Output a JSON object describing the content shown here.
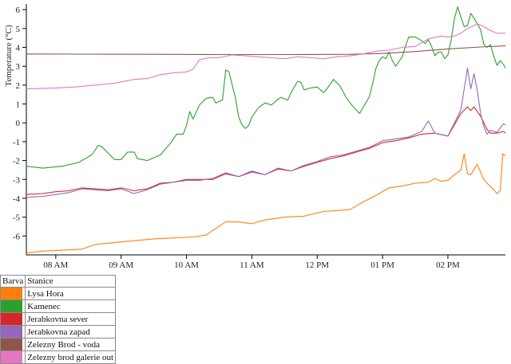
{
  "chart_data": {
    "type": "line",
    "ylabel": "Temperature (°C)",
    "ylim": [
      -7,
      6.3
    ],
    "yticks": [
      -6,
      -5,
      -4,
      -3,
      -2,
      -1,
      0,
      1,
      2,
      3,
      4,
      5,
      6
    ],
    "xlim": [
      7.55,
      14.88
    ],
    "xticks": [
      {
        "value": 8,
        "label": "08 AM"
      },
      {
        "value": 9,
        "label": "09 AM"
      },
      {
        "value": 10,
        "label": "10 AM"
      },
      {
        "value": 11,
        "label": "11 AM"
      },
      {
        "value": 12,
        "label": "12 PM"
      },
      {
        "value": 13,
        "label": "01 PM"
      },
      {
        "value": 14,
        "label": "02 PM"
      }
    ],
    "grid": false,
    "series": [
      {
        "name": "Lysa Hora",
        "color": "#ff7f0e",
        "points": [
          [
            7.55,
            -6.9
          ],
          [
            7.8,
            -6.8
          ],
          [
            8.1,
            -6.75
          ],
          [
            8.4,
            -6.7
          ],
          [
            8.6,
            -6.45
          ],
          [
            8.9,
            -6.35
          ],
          [
            9.2,
            -6.25
          ],
          [
            9.5,
            -6.15
          ],
          [
            9.8,
            -6.1
          ],
          [
            10.1,
            -6.05
          ],
          [
            10.3,
            -5.95
          ],
          [
            10.45,
            -5.6
          ],
          [
            10.6,
            -5.25
          ],
          [
            10.8,
            -5.25
          ],
          [
            11.0,
            -5.35
          ],
          [
            11.2,
            -5.15
          ],
          [
            11.5,
            -5.0
          ],
          [
            11.8,
            -4.95
          ],
          [
            12.1,
            -4.7
          ],
          [
            12.3,
            -4.65
          ],
          [
            12.5,
            -4.6
          ],
          [
            12.7,
            -4.2
          ],
          [
            12.9,
            -3.85
          ],
          [
            13.1,
            -3.45
          ],
          [
            13.3,
            -3.35
          ],
          [
            13.5,
            -3.2
          ],
          [
            13.7,
            -3.15
          ],
          [
            13.8,
            -2.95
          ],
          [
            13.9,
            -3.1
          ],
          [
            14.0,
            -3.05
          ],
          [
            14.1,
            -2.75
          ],
          [
            14.2,
            -2.5
          ],
          [
            14.25,
            -1.65
          ],
          [
            14.3,
            -2.7
          ],
          [
            14.35,
            -2.75
          ],
          [
            14.45,
            -2.2
          ],
          [
            14.55,
            -3.0
          ],
          [
            14.6,
            -3.2
          ],
          [
            14.7,
            -3.55
          ],
          [
            14.75,
            -3.75
          ],
          [
            14.8,
            -3.6
          ],
          [
            14.84,
            -1.65
          ],
          [
            14.88,
            -1.75
          ]
        ]
      },
      {
        "name": "Kamenec",
        "color": "#2ca02c",
        "points": [
          [
            7.55,
            -2.3
          ],
          [
            7.8,
            -2.4
          ],
          [
            8.1,
            -2.3
          ],
          [
            8.35,
            -2.1
          ],
          [
            8.55,
            -1.7
          ],
          [
            8.65,
            -1.2
          ],
          [
            8.7,
            -1.25
          ],
          [
            8.8,
            -1.6
          ],
          [
            8.9,
            -1.95
          ],
          [
            9.0,
            -1.95
          ],
          [
            9.1,
            -1.55
          ],
          [
            9.2,
            -1.55
          ],
          [
            9.25,
            -1.9
          ],
          [
            9.4,
            -2.0
          ],
          [
            9.6,
            -1.7
          ],
          [
            9.75,
            -1.1
          ],
          [
            9.85,
            -0.6
          ],
          [
            9.95,
            -0.6
          ],
          [
            10.0,
            -0.15
          ],
          [
            10.05,
            0.6
          ],
          [
            10.1,
            0.2
          ],
          [
            10.2,
            0.95
          ],
          [
            10.3,
            1.3
          ],
          [
            10.4,
            1.35
          ],
          [
            10.45,
            1.05
          ],
          [
            10.55,
            1.2
          ],
          [
            10.6,
            2.8
          ],
          [
            10.65,
            2.7
          ],
          [
            10.75,
            1.3
          ],
          [
            10.8,
            0.3
          ],
          [
            10.85,
            -0.1
          ],
          [
            10.9,
            -0.3
          ],
          [
            10.95,
            -0.15
          ],
          [
            11.0,
            0.3
          ],
          [
            11.1,
            0.8
          ],
          [
            11.2,
            1.05
          ],
          [
            11.3,
            0.95
          ],
          [
            11.4,
            1.25
          ],
          [
            11.45,
            1.35
          ],
          [
            11.55,
            1.2
          ],
          [
            11.6,
            1.6
          ],
          [
            11.7,
            2.2
          ],
          [
            11.75,
            2.15
          ],
          [
            11.8,
            1.75
          ],
          [
            11.9,
            1.85
          ],
          [
            12.0,
            1.9
          ],
          [
            12.1,
            1.6
          ],
          [
            12.15,
            1.8
          ],
          [
            12.25,
            2.3
          ],
          [
            12.35,
            1.95
          ],
          [
            12.45,
            1.3
          ],
          [
            12.55,
            0.85
          ],
          [
            12.65,
            0.5
          ],
          [
            12.7,
            0.8
          ],
          [
            12.8,
            1.4
          ],
          [
            12.85,
            2.1
          ],
          [
            12.9,
            2.9
          ],
          [
            12.95,
            3.3
          ],
          [
            13.0,
            3.5
          ],
          [
            13.05,
            3.4
          ],
          [
            13.1,
            3.75
          ],
          [
            13.15,
            3.3
          ],
          [
            13.2,
            3.0
          ],
          [
            13.3,
            3.5
          ],
          [
            13.35,
            4.05
          ],
          [
            13.4,
            4.55
          ],
          [
            13.5,
            4.55
          ],
          [
            13.6,
            4.35
          ],
          [
            13.65,
            4.2
          ],
          [
            13.7,
            4.4
          ],
          [
            13.75,
            4.05
          ],
          [
            13.8,
            3.55
          ],
          [
            13.85,
            3.75
          ],
          [
            13.9,
            3.75
          ],
          [
            13.95,
            3.4
          ],
          [
            14.0,
            3.6
          ],
          [
            14.05,
            4.4
          ],
          [
            14.1,
            5.55
          ],
          [
            14.15,
            6.15
          ],
          [
            14.2,
            5.6
          ],
          [
            14.25,
            5.1
          ],
          [
            14.3,
            5.15
          ],
          [
            14.35,
            5.8
          ],
          [
            14.4,
            5.55
          ],
          [
            14.5,
            4.95
          ],
          [
            14.55,
            4.15
          ],
          [
            14.6,
            4.0
          ],
          [
            14.65,
            4.15
          ],
          [
            14.7,
            3.55
          ],
          [
            14.75,
            3.05
          ],
          [
            14.8,
            3.3
          ],
          [
            14.85,
            3.1
          ],
          [
            14.88,
            2.9
          ]
        ]
      },
      {
        "name": "Jerabkovna sever",
        "color": "#d62728",
        "points": [
          [
            7.55,
            -3.8
          ],
          [
            7.8,
            -3.75
          ],
          [
            8.0,
            -3.65
          ],
          [
            8.2,
            -3.6
          ],
          [
            8.4,
            -3.45
          ],
          [
            8.6,
            -3.5
          ],
          [
            8.8,
            -3.55
          ],
          [
            9.0,
            -3.45
          ],
          [
            9.2,
            -3.6
          ],
          [
            9.4,
            -3.5
          ],
          [
            9.6,
            -3.2
          ],
          [
            9.8,
            -3.15
          ],
          [
            10.0,
            -3.0
          ],
          [
            10.2,
            -3.0
          ],
          [
            10.4,
            -3.0
          ],
          [
            10.6,
            -2.7
          ],
          [
            10.8,
            -2.85
          ],
          [
            11.0,
            -2.6
          ],
          [
            11.2,
            -2.75
          ],
          [
            11.4,
            -2.45
          ],
          [
            11.6,
            -2.55
          ],
          [
            11.8,
            -2.3
          ],
          [
            12.0,
            -2.1
          ],
          [
            12.2,
            -1.9
          ],
          [
            12.4,
            -1.75
          ],
          [
            12.6,
            -1.55
          ],
          [
            12.8,
            -1.35
          ],
          [
            13.0,
            -1.05
          ],
          [
            13.2,
            -0.95
          ],
          [
            13.4,
            -0.8
          ],
          [
            13.6,
            -0.6
          ],
          [
            13.8,
            -0.55
          ],
          [
            14.0,
            -0.7
          ],
          [
            14.1,
            -0.1
          ],
          [
            14.2,
            0.5
          ],
          [
            14.3,
            0.85
          ],
          [
            14.35,
            0.65
          ],
          [
            14.4,
            0.85
          ],
          [
            14.5,
            0.35
          ],
          [
            14.6,
            -0.35
          ],
          [
            14.65,
            -0.55
          ],
          [
            14.75,
            -0.55
          ],
          [
            14.85,
            -0.45
          ],
          [
            14.88,
            -0.55
          ]
        ]
      },
      {
        "name": "Jerabkovna zapad",
        "color": "#9467bd",
        "points": [
          [
            7.55,
            -3.95
          ],
          [
            7.8,
            -3.9
          ],
          [
            8.0,
            -3.8
          ],
          [
            8.2,
            -3.7
          ],
          [
            8.4,
            -3.5
          ],
          [
            8.6,
            -3.55
          ],
          [
            8.8,
            -3.6
          ],
          [
            9.0,
            -3.5
          ],
          [
            9.2,
            -3.75
          ],
          [
            9.4,
            -3.55
          ],
          [
            9.6,
            -3.25
          ],
          [
            9.8,
            -3.15
          ],
          [
            10.0,
            -3.05
          ],
          [
            10.2,
            -3.05
          ],
          [
            10.4,
            -2.95
          ],
          [
            10.6,
            -2.65
          ],
          [
            10.8,
            -2.85
          ],
          [
            11.0,
            -2.55
          ],
          [
            11.2,
            -2.75
          ],
          [
            11.4,
            -2.4
          ],
          [
            11.6,
            -2.55
          ],
          [
            11.8,
            -2.25
          ],
          [
            12.0,
            -2.05
          ],
          [
            12.2,
            -1.8
          ],
          [
            12.4,
            -1.7
          ],
          [
            12.6,
            -1.5
          ],
          [
            12.8,
            -1.3
          ],
          [
            13.0,
            -0.95
          ],
          [
            13.2,
            -0.85
          ],
          [
            13.4,
            -0.75
          ],
          [
            13.6,
            -0.45
          ],
          [
            13.7,
            0.1
          ],
          [
            13.8,
            -0.55
          ],
          [
            14.0,
            -0.7
          ],
          [
            14.1,
            0.0
          ],
          [
            14.2,
            0.7
          ],
          [
            14.3,
            2.9
          ],
          [
            14.35,
            1.8
          ],
          [
            14.4,
            2.6
          ],
          [
            14.45,
            1.7
          ],
          [
            14.5,
            0.5
          ],
          [
            14.55,
            -0.2
          ],
          [
            14.6,
            -0.6
          ],
          [
            14.65,
            -0.4
          ],
          [
            14.75,
            -0.5
          ],
          [
            14.85,
            -0.05
          ],
          [
            14.88,
            -0.1
          ]
        ]
      },
      {
        "name": "Zelezny Brod - voda",
        "color": "#8c564b",
        "points": [
          [
            7.55,
            3.65
          ],
          [
            8.5,
            3.64
          ],
          [
            9.5,
            3.63
          ],
          [
            10.5,
            3.62
          ],
          [
            11.5,
            3.62
          ],
          [
            12.5,
            3.63
          ],
          [
            13.0,
            3.68
          ],
          [
            13.5,
            3.78
          ],
          [
            14.0,
            3.92
          ],
          [
            14.5,
            4.02
          ],
          [
            14.88,
            4.08
          ]
        ]
      },
      {
        "name": "Zelezny brod galerie out",
        "color": "#e377c2",
        "points": [
          [
            7.55,
            1.8
          ],
          [
            8.0,
            1.85
          ],
          [
            8.3,
            1.9
          ],
          [
            8.6,
            2.0
          ],
          [
            8.9,
            2.1
          ],
          [
            9.2,
            2.3
          ],
          [
            9.4,
            2.35
          ],
          [
            9.6,
            2.55
          ],
          [
            9.8,
            2.65
          ],
          [
            10.0,
            2.7
          ],
          [
            10.1,
            2.85
          ],
          [
            10.2,
            3.35
          ],
          [
            10.35,
            3.45
          ],
          [
            10.5,
            3.45
          ],
          [
            10.7,
            3.6
          ],
          [
            10.9,
            3.55
          ],
          [
            11.1,
            3.5
          ],
          [
            11.3,
            3.45
          ],
          [
            11.5,
            3.4
          ],
          [
            11.7,
            3.5
          ],
          [
            11.9,
            3.45
          ],
          [
            12.1,
            3.4
          ],
          [
            12.3,
            3.5
          ],
          [
            12.5,
            3.55
          ],
          [
            12.7,
            3.65
          ],
          [
            12.9,
            3.8
          ],
          [
            13.1,
            3.85
          ],
          [
            13.3,
            4.0
          ],
          [
            13.5,
            4.05
          ],
          [
            13.7,
            4.45
          ],
          [
            13.9,
            4.6
          ],
          [
            14.0,
            4.55
          ],
          [
            14.1,
            4.6
          ],
          [
            14.2,
            4.75
          ],
          [
            14.3,
            5.0
          ],
          [
            14.45,
            5.25
          ],
          [
            14.55,
            5.1
          ],
          [
            14.65,
            4.9
          ],
          [
            14.75,
            4.75
          ],
          [
            14.88,
            4.75
          ]
        ]
      }
    ]
  },
  "legend": {
    "header_color": "Barva",
    "header_station": "Stanice"
  }
}
